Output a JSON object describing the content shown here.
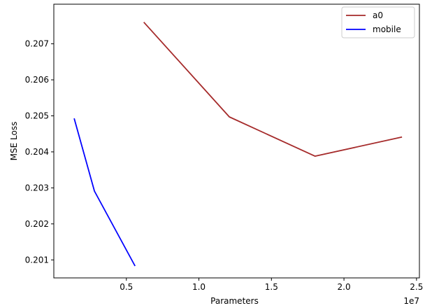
{
  "chart_data": {
    "type": "line",
    "xlabel": "Parameters",
    "ylabel": "MSE Loss",
    "x_offset_label": "1e7",
    "xlim": [
      0.0,
      25200000.0
    ],
    "ylim": [
      0.2005,
      0.2081
    ],
    "x_ticks": [
      {
        "value": 5000000.0,
        "label": "0.5"
      },
      {
        "value": 10000000.0,
        "label": "1.0"
      },
      {
        "value": 15000000.0,
        "label": "1.5"
      },
      {
        "value": 20000000.0,
        "label": "2.0"
      },
      {
        "value": 25000000.0,
        "label": "2.5"
      }
    ],
    "y_ticks": [
      {
        "value": 0.201,
        "label": "0.201"
      },
      {
        "value": 0.202,
        "label": "0.202"
      },
      {
        "value": 0.203,
        "label": "0.203"
      },
      {
        "value": 0.204,
        "label": "0.204"
      },
      {
        "value": 0.205,
        "label": "0.205"
      },
      {
        "value": 0.206,
        "label": "0.206"
      },
      {
        "value": 0.207,
        "label": "0.207"
      }
    ],
    "grid": false,
    "legend_position": "top-right",
    "series": [
      {
        "name": "a0",
        "color": "#a52a2a",
        "x": [
          6200000.0,
          12100000.0,
          18000000.0,
          24000000.0
        ],
        "y": [
          0.2076,
          0.20497,
          0.20388,
          0.20441
        ]
      },
      {
        "name": "mobile",
        "color": "#0000ff",
        "x": [
          1400000.0,
          2800000.0,
          5600000.0
        ],
        "y": [
          0.20493,
          0.20291,
          0.20083
        ]
      }
    ]
  }
}
